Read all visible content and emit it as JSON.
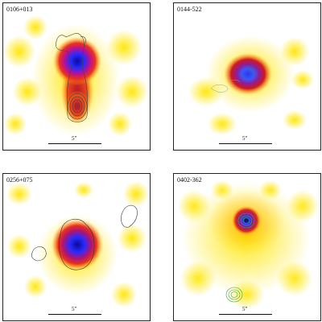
{
  "panels": [
    {
      "label": "0106+013",
      "scale": "5\""
    },
    {
      "label": "0144-522",
      "scale": "5\""
    },
    {
      "label": "0256+075",
      "scale": "5\""
    },
    {
      "label": "0402-362",
      "scale": "5\""
    }
  ],
  "colors": {
    "background": "#ffffff",
    "yellow_emission": "#ffe800",
    "red_core": "#b8142a",
    "blue_peak": "#1b1ed6",
    "contour_dark": "#444444",
    "contour_green": "#3aa84a"
  }
}
